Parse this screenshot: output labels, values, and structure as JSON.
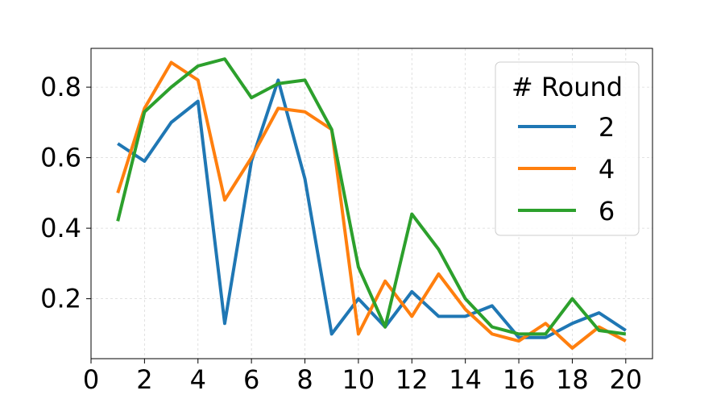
{
  "chart_data": {
    "type": "line",
    "title": "",
    "xlabel": "",
    "ylabel": "",
    "xlim": [
      0,
      21
    ],
    "ylim": [
      0.03,
      0.91
    ],
    "xticks": [
      0,
      2,
      4,
      6,
      8,
      10,
      12,
      14,
      16,
      18,
      20
    ],
    "yticks": [
      0.2,
      0.4,
      0.6,
      0.8
    ],
    "xtick_labels": [
      "0",
      "2",
      "4",
      "6",
      "8",
      "10",
      "12",
      "14",
      "16",
      "18",
      "20"
    ],
    "ytick_labels": [
      "0.2",
      "0.4",
      "0.6",
      "0.8"
    ],
    "grid": true,
    "legend": {
      "title": "# Round",
      "placement": "top-right"
    },
    "x": [
      1,
      2,
      3,
      4,
      5,
      6,
      7,
      8,
      9,
      10,
      11,
      12,
      13,
      14,
      15,
      16,
      17,
      18,
      19,
      20
    ],
    "series": [
      {
        "name": "2",
        "color": "#1f77b4",
        "values": [
          0.64,
          0.59,
          0.7,
          0.76,
          0.13,
          0.59,
          0.82,
          0.54,
          0.1,
          0.2,
          0.12,
          0.22,
          0.15,
          0.15,
          0.18,
          0.09,
          0.09,
          0.13,
          0.16,
          0.11
        ]
      },
      {
        "name": "4",
        "color": "#ff7f0e",
        "values": [
          0.5,
          0.74,
          0.87,
          0.82,
          0.48,
          0.6,
          0.74,
          0.73,
          0.68,
          0.1,
          0.25,
          0.15,
          0.27,
          0.17,
          0.1,
          0.08,
          0.13,
          0.06,
          0.12,
          0.08
        ]
      },
      {
        "name": "6",
        "color": "#2ca02c",
        "values": [
          0.42,
          0.73,
          0.8,
          0.86,
          0.88,
          0.77,
          0.81,
          0.82,
          0.68,
          0.29,
          0.12,
          0.44,
          0.34,
          0.2,
          0.12,
          0.1,
          0.1,
          0.2,
          0.11,
          0.1
        ]
      }
    ]
  }
}
